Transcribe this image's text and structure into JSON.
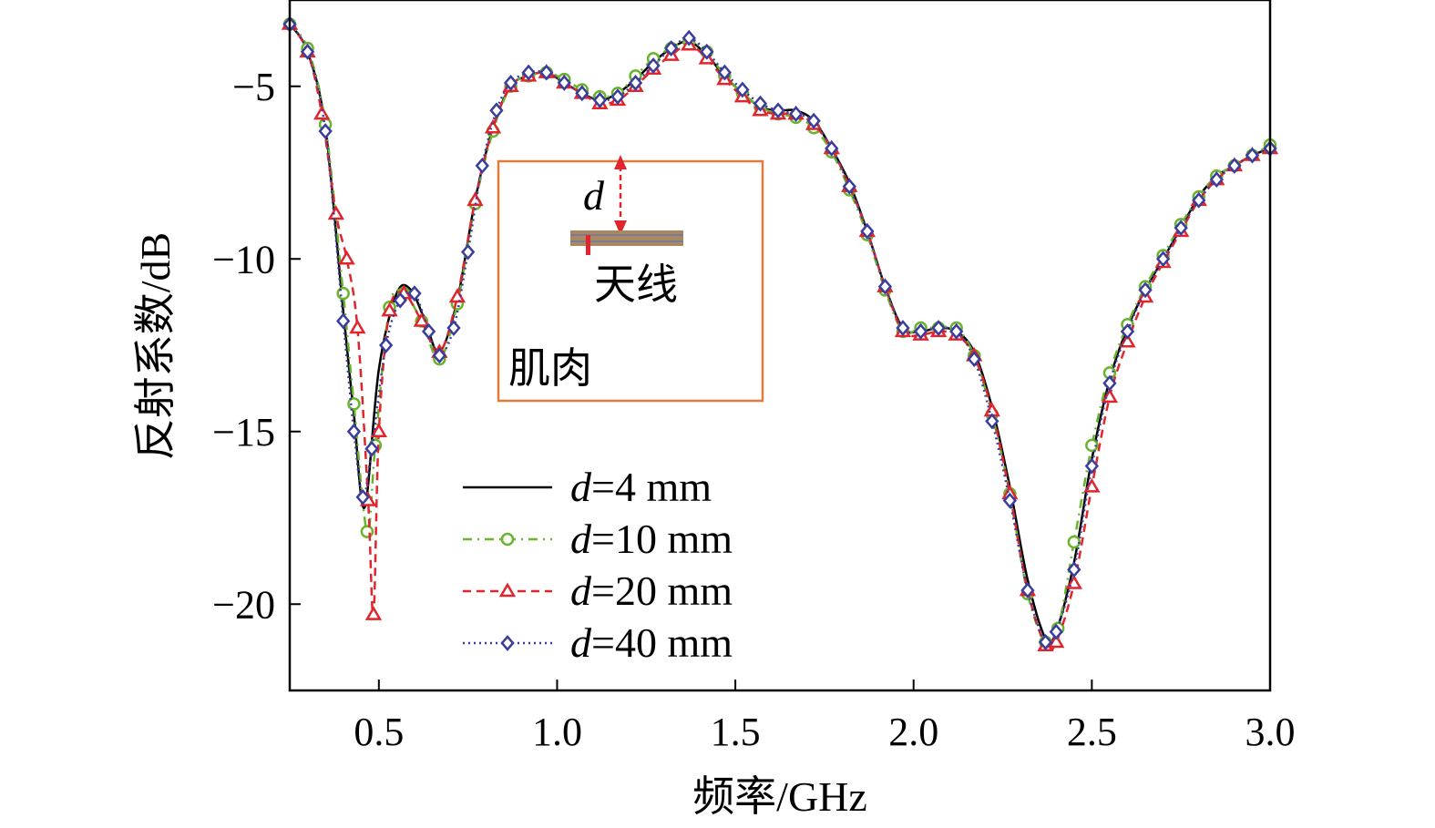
{
  "chart_data": {
    "type": "line",
    "xlabel": "频率/GHz",
    "ylabel": "反射系数/dB",
    "xlim": [
      0.25,
      3.0
    ],
    "ylim": [
      -22.5,
      -2.5
    ],
    "x_ticks": [
      0.5,
      1.0,
      1.5,
      2.0,
      2.5,
      3.0
    ],
    "x_tick_labels": [
      "0.5",
      "1.0",
      "1.5",
      "2.0",
      "2.5",
      "3.0"
    ],
    "y_ticks": [
      -5,
      -10,
      -15,
      -20
    ],
    "y_tick_labels": [
      "−5",
      "−10",
      "−15",
      "−20"
    ],
    "grid": false,
    "legend": {
      "position": "lower-center",
      "entries": [
        {
          "var": "d",
          "text": "=4 mm"
        },
        {
          "var": "d",
          "text": "=10 mm"
        },
        {
          "var": "d",
          "text": "=20 mm"
        },
        {
          "var": "d",
          "text": "=40 mm"
        }
      ]
    },
    "inset": {
      "d_label": "d",
      "antenna_label": "天线",
      "tissue_label": "肌肉",
      "border_color": "#e07b39"
    },
    "series": [
      {
        "name": "d=4 mm",
        "color": "#000000",
        "dash": "",
        "marker": "none",
        "x": [
          0.25,
          0.3,
          0.35,
          0.4,
          0.43,
          0.46,
          0.5,
          0.55,
          0.59,
          0.63,
          0.67,
          0.72,
          0.77,
          0.82,
          0.87,
          0.92,
          0.97,
          1.02,
          1.07,
          1.12,
          1.17,
          1.22,
          1.27,
          1.32,
          1.37,
          1.42,
          1.47,
          1.52,
          1.57,
          1.62,
          1.67,
          1.72,
          1.77,
          1.82,
          1.87,
          1.92,
          1.97,
          2.02,
          2.07,
          2.12,
          2.17,
          2.22,
          2.27,
          2.32,
          2.37,
          2.4,
          2.45,
          2.5,
          2.55,
          2.6,
          2.65,
          2.7,
          2.75,
          2.8,
          2.85,
          2.9,
          2.95,
          3.0
        ],
        "y": [
          -3.2,
          -4.0,
          -6.2,
          -11.5,
          -14.5,
          -17.2,
          -13.2,
          -11.0,
          -10.9,
          -11.8,
          -12.7,
          -11.2,
          -8.3,
          -6.2,
          -5.0,
          -4.7,
          -4.6,
          -4.9,
          -5.2,
          -5.4,
          -5.2,
          -4.8,
          -4.3,
          -3.9,
          -3.7,
          -4.1,
          -4.7,
          -5.2,
          -5.6,
          -5.7,
          -5.7,
          -6.0,
          -6.8,
          -7.8,
          -9.2,
          -10.8,
          -12.0,
          -12.1,
          -12.0,
          -12.1,
          -12.7,
          -14.3,
          -16.6,
          -19.3,
          -21.0,
          -20.8,
          -18.8,
          -15.8,
          -13.5,
          -12.0,
          -10.9,
          -10.0,
          -9.1,
          -8.2,
          -7.6,
          -7.3,
          -7.0,
          -6.8
        ]
      },
      {
        "name": "d=10 mm",
        "color": "#6ab42d",
        "dash": "10 6 2 6",
        "marker": "circle",
        "x": [
          0.25,
          0.3,
          0.35,
          0.4,
          0.43,
          0.467,
          0.49,
          0.53,
          0.57,
          0.62,
          0.67,
          0.72,
          0.77,
          0.82,
          0.87,
          0.92,
          0.97,
          1.02,
          1.07,
          1.12,
          1.17,
          1.22,
          1.27,
          1.32,
          1.37,
          1.42,
          1.47,
          1.52,
          1.57,
          1.62,
          1.67,
          1.72,
          1.77,
          1.82,
          1.87,
          1.92,
          1.97,
          2.02,
          2.07,
          2.12,
          2.17,
          2.22,
          2.27,
          2.32,
          2.37,
          2.405,
          2.45,
          2.5,
          2.55,
          2.6,
          2.65,
          2.7,
          2.75,
          2.8,
          2.85,
          2.9,
          2.95,
          3.0
        ],
        "y": [
          -3.2,
          -3.9,
          -6.1,
          -11.0,
          -14.2,
          -17.9,
          -15.4,
          -11.4,
          -11.0,
          -11.8,
          -12.9,
          -11.3,
          -8.4,
          -6.3,
          -5.0,
          -4.7,
          -4.6,
          -4.8,
          -5.1,
          -5.3,
          -5.2,
          -4.7,
          -4.2,
          -3.9,
          -3.7,
          -4.0,
          -4.7,
          -5.2,
          -5.6,
          -5.8,
          -5.9,
          -6.2,
          -6.9,
          -8.0,
          -9.3,
          -10.9,
          -12.1,
          -12.0,
          -12.0,
          -12.0,
          -12.8,
          -14.5,
          -16.8,
          -19.7,
          -21.1,
          -20.7,
          -18.2,
          -15.4,
          -13.3,
          -11.9,
          -10.8,
          -9.9,
          -9.0,
          -8.2,
          -7.6,
          -7.3,
          -7.0,
          -6.7
        ]
      },
      {
        "name": "d=20 mm",
        "color": "#e0252d",
        "dash": "9 6",
        "marker": "triangle",
        "x": [
          0.25,
          0.3,
          0.34,
          0.38,
          0.41,
          0.44,
          0.47,
          0.485,
          0.5,
          0.53,
          0.57,
          0.62,
          0.67,
          0.72,
          0.77,
          0.82,
          0.87,
          0.92,
          0.97,
          1.02,
          1.07,
          1.12,
          1.17,
          1.22,
          1.27,
          1.32,
          1.37,
          1.42,
          1.47,
          1.52,
          1.57,
          1.62,
          1.67,
          1.72,
          1.77,
          1.82,
          1.87,
          1.92,
          1.97,
          2.02,
          2.07,
          2.12,
          2.17,
          2.22,
          2.27,
          2.32,
          2.37,
          2.4,
          2.45,
          2.5,
          2.55,
          2.6,
          2.65,
          2.7,
          2.75,
          2.8,
          2.85,
          2.9,
          2.95,
          3.0
        ],
        "y": [
          -3.2,
          -4.0,
          -5.8,
          -8.7,
          -10.0,
          -12.0,
          -17.0,
          -20.3,
          -15.0,
          -11.5,
          -11.0,
          -11.8,
          -12.7,
          -11.1,
          -8.3,
          -6.2,
          -5.0,
          -4.7,
          -4.6,
          -4.9,
          -5.2,
          -5.5,
          -5.4,
          -5.0,
          -4.5,
          -4.1,
          -3.8,
          -4.2,
          -4.8,
          -5.3,
          -5.7,
          -5.8,
          -5.8,
          -6.1,
          -6.8,
          -7.9,
          -9.2,
          -10.8,
          -12.1,
          -12.2,
          -12.1,
          -12.2,
          -12.8,
          -14.4,
          -16.8,
          -19.6,
          -21.2,
          -21.1,
          -19.4,
          -16.6,
          -14.0,
          -12.4,
          -11.1,
          -10.1,
          -9.2,
          -8.3,
          -7.7,
          -7.3,
          -7.0,
          -6.8
        ]
      },
      {
        "name": "d=40 mm",
        "color": "#3a3d9c",
        "dash": "2 4",
        "marker": "diamond",
        "x": [
          0.25,
          0.3,
          0.35,
          0.4,
          0.43,
          0.455,
          0.48,
          0.52,
          0.56,
          0.6,
          0.64,
          0.67,
          0.71,
          0.75,
          0.79,
          0.83,
          0.87,
          0.92,
          0.97,
          1.02,
          1.07,
          1.12,
          1.17,
          1.22,
          1.27,
          1.32,
          1.37,
          1.42,
          1.47,
          1.52,
          1.57,
          1.62,
          1.67,
          1.72,
          1.77,
          1.82,
          1.87,
          1.92,
          1.97,
          2.02,
          2.07,
          2.12,
          2.17,
          2.22,
          2.27,
          2.32,
          2.37,
          2.4,
          2.45,
          2.5,
          2.55,
          2.6,
          2.65,
          2.7,
          2.75,
          2.8,
          2.85,
          2.9,
          2.95,
          3.0
        ],
        "y": [
          -3.2,
          -4.0,
          -6.3,
          -11.8,
          -15.0,
          -16.9,
          -15.5,
          -12.5,
          -11.2,
          -11.0,
          -12.1,
          -12.8,
          -12.0,
          -9.8,
          -7.3,
          -5.7,
          -4.9,
          -4.6,
          -4.6,
          -4.9,
          -5.2,
          -5.4,
          -5.3,
          -4.9,
          -4.4,
          -3.9,
          -3.6,
          -4.0,
          -4.6,
          -5.1,
          -5.5,
          -5.7,
          -5.8,
          -6.0,
          -6.8,
          -7.9,
          -9.2,
          -10.8,
          -12.0,
          -12.1,
          -12.0,
          -12.1,
          -12.9,
          -14.7,
          -17.0,
          -19.6,
          -21.1,
          -20.8,
          -19.0,
          -16.0,
          -13.6,
          -12.1,
          -10.9,
          -10.0,
          -9.1,
          -8.3,
          -7.7,
          -7.3,
          -7.0,
          -6.8
        ]
      }
    ]
  }
}
